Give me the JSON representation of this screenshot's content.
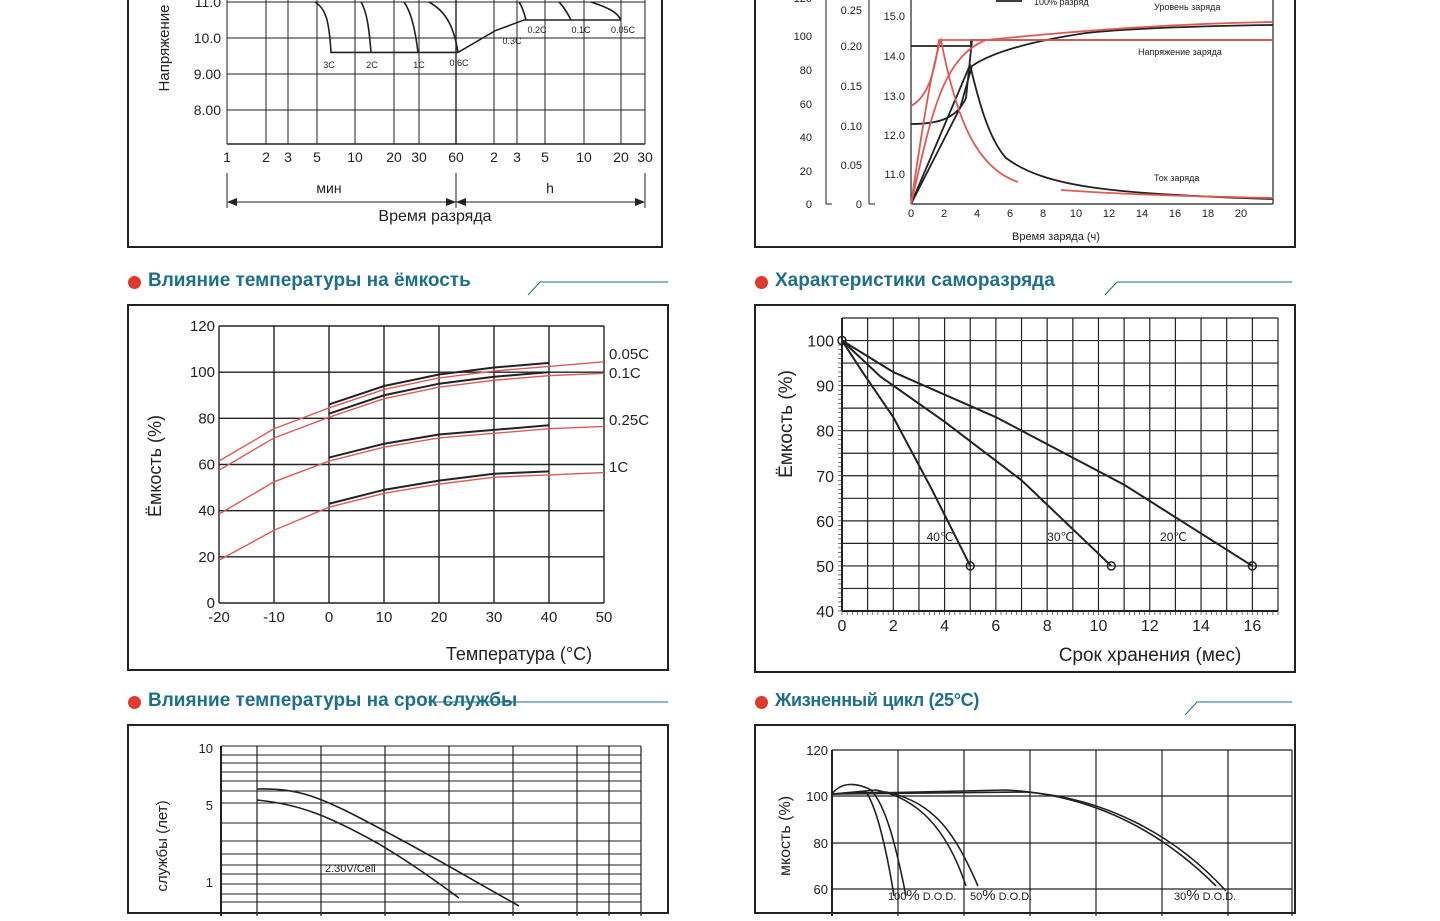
{
  "sections": [
    {
      "title": "Влияние температуры на ёмкость"
    },
    {
      "title": "Характеристики саморазряда"
    },
    {
      "title": "Влияние температуры на срок службы"
    },
    {
      "title": "Жизненный цикл (25°C)"
    }
  ],
  "chart_data": [
    {
      "id": "discharge",
      "type": "line",
      "title": "",
      "xlabel": "Время разряда",
      "ylabel": "Напряжение",
      "x_ticks": [
        "1",
        "2",
        "3",
        "5",
        "10",
        "20",
        "30",
        "60",
        "2",
        "3",
        "5",
        "10",
        "20",
        "30"
      ],
      "x_ranges": [
        "мин",
        "h"
      ],
      "y_ticks": [
        "11.0",
        "10.0",
        "9.00",
        "8.00"
      ],
      "series": [
        {
          "name": "3C",
          "end_voltage": 9.6
        },
        {
          "name": "2C",
          "end_voltage": 9.6
        },
        {
          "name": "1C",
          "end_voltage": 9.6
        },
        {
          "name": "0.6C",
          "end_voltage": 9.6
        },
        {
          "name": "0.3C",
          "end_voltage": 10.2
        },
        {
          "name": "0.2C",
          "end_voltage": 10.5
        },
        {
          "name": "0.1C",
          "end_voltage": 10.5
        },
        {
          "name": "0.05C",
          "end_voltage": 10.5
        }
      ]
    },
    {
      "id": "charge",
      "type": "line",
      "title": "",
      "xlabel": "Время заряда (ч)",
      "x_ticks": [
        "0",
        "2",
        "4",
        "6",
        "8",
        "10",
        "12",
        "14",
        "16",
        "18",
        "20"
      ],
      "y_left_ticks_1": [
        "120",
        "100",
        "80",
        "60",
        "40",
        "20",
        "0"
      ],
      "y_left_ticks_2": [
        "0.25",
        "0.20",
        "0.15",
        "0.10",
        "0.05",
        "0"
      ],
      "y_left_ticks_3": [
        "15.0",
        "14.0",
        "13.0",
        "12.0",
        "11.0"
      ],
      "legend": [
        "100% разряд"
      ],
      "annotations": [
        "Уровень заряда",
        "Напряжение заряда",
        "Ток заряда"
      ]
    },
    {
      "id": "temp_capacity",
      "type": "line",
      "title": "Влияние температуры на ёмкость",
      "xlabel": "Температура (°C)",
      "ylabel": "Ёмкость (%)",
      "x": [
        -20,
        -10,
        0,
        10,
        20,
        30,
        40,
        50
      ],
      "x_ticks": [
        "-20",
        "-10",
        "0",
        "10",
        "20",
        "30",
        "40",
        "50"
      ],
      "y_ticks": [
        "120",
        "100",
        "80",
        "60",
        "40",
        "20",
        "0"
      ],
      "xlim": [
        -20,
        50
      ],
      "ylim": [
        0,
        120
      ],
      "series": [
        {
          "name": "0.05C",
          "values": [
            63,
            77,
            86,
            94,
            99,
            102,
            104,
            106
          ]
        },
        {
          "name": "0.1C",
          "values": [
            59,
            73,
            82,
            90,
            95,
            98,
            100,
            101
          ]
        },
        {
          "name": "0.25C",
          "values": [
            40,
            54,
            63,
            69,
            73,
            75,
            77,
            78
          ]
        },
        {
          "name": "1C",
          "values": [
            20,
            33,
            43,
            49,
            53,
            56,
            57,
            58
          ]
        }
      ]
    },
    {
      "id": "self_discharge",
      "type": "line",
      "title": "Характеристики саморазряда",
      "xlabel": "Срок хранения (мес)",
      "ylabel": "Ёмкость (%)",
      "x_ticks": [
        "0",
        "2",
        "4",
        "6",
        "8",
        "10",
        "12",
        "14",
        "16"
      ],
      "y_ticks": [
        "100",
        "90",
        "80",
        "70",
        "60",
        "50",
        "40"
      ],
      "xlim": [
        0,
        17
      ],
      "ylim": [
        40,
        102
      ],
      "series": [
        {
          "name": "40°C",
          "points": [
            [
              0,
              100
            ],
            [
              0.8,
              93
            ],
            [
              2,
              83
            ],
            [
              3.5,
              67
            ],
            [
              5,
              50
            ]
          ]
        },
        {
          "name": "30°C",
          "points": [
            [
              0,
              100
            ],
            [
              1.5,
              92
            ],
            [
              4,
              82
            ],
            [
              7,
              69
            ],
            [
              10.5,
              50
            ]
          ]
        },
        {
          "name": "20°C",
          "points": [
            [
              0,
              100
            ],
            [
              2,
              93
            ],
            [
              6,
              83
            ],
            [
              11,
              68
            ],
            [
              16,
              50
            ]
          ]
        }
      ],
      "labels": [
        "40℃",
        "30℃",
        "20℃"
      ]
    },
    {
      "id": "temp_life",
      "type": "line",
      "title": "Влияние температуры на срок службы",
      "ylabel": "службы (лет)",
      "y_ticks": [
        "10",
        "5",
        "1"
      ],
      "annotations": [
        "2.30V/Cell"
      ]
    },
    {
      "id": "cycle_life",
      "type": "line",
      "title": "Жизненный цикл (25°C)",
      "ylabel": "мкость (%)",
      "y_ticks": [
        "120",
        "100",
        "80",
        "60"
      ],
      "labels": [
        {
          "pct": "100",
          "unit": "%",
          "dod": "D.O.D."
        },
        {
          "pct": "50",
          "unit": "%",
          "dod": "D.O.D."
        },
        {
          "pct": "30",
          "unit": "%",
          "dod": "D.O.D."
        }
      ]
    }
  ]
}
